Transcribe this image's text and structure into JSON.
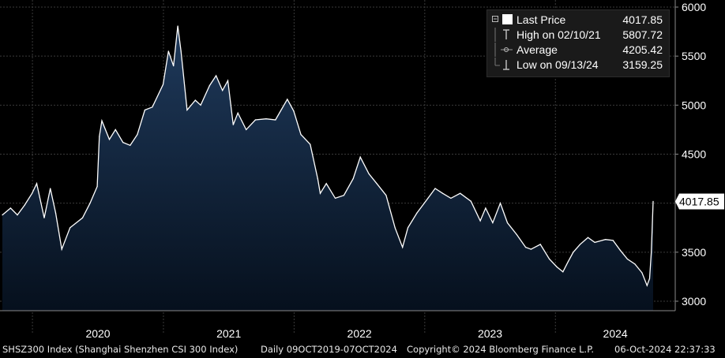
{
  "chart_data": {
    "type": "area",
    "title": "",
    "xlabel": "",
    "ylabel": "",
    "ylim": [
      2900,
      6000
    ],
    "y_ticks": [
      3000,
      3500,
      4000,
      4500,
      5000,
      5500,
      6000
    ],
    "x_year_labels": [
      "2020",
      "2021",
      "2022",
      "2023",
      "2024"
    ],
    "grid": true,
    "legend_placement": "top-right",
    "series": [
      {
        "name": "Last Price",
        "x": [
          "2019-10-09",
          "2019-11-01",
          "2019-11-20",
          "2019-12-10",
          "2019-12-31",
          "2020-01-13",
          "2020-02-03",
          "2020-02-20",
          "2020-03-06",
          "2020-03-23",
          "2020-04-15",
          "2020-05-20",
          "2020-06-10",
          "2020-06-30",
          "2020-07-06",
          "2020-07-13",
          "2020-08-03",
          "2020-08-20",
          "2020-09-10",
          "2020-09-30",
          "2020-10-20",
          "2020-11-10",
          "2020-12-01",
          "2020-12-31",
          "2021-01-15",
          "2021-01-29",
          "2021-02-10",
          "2021-02-19",
          "2021-03-08",
          "2021-03-31",
          "2021-04-15",
          "2021-05-10",
          "2021-05-28",
          "2021-06-15",
          "2021-06-30",
          "2021-07-15",
          "2021-07-28",
          "2021-08-20",
          "2021-09-15",
          "2021-10-15",
          "2021-11-10",
          "2021-12-13",
          "2021-12-31",
          "2022-01-20",
          "2022-02-15",
          "2022-03-08",
          "2022-03-15",
          "2022-04-01",
          "2022-04-26",
          "2022-05-20",
          "2022-06-15",
          "2022-07-05",
          "2022-07-29",
          "2022-08-20",
          "2022-09-15",
          "2022-10-10",
          "2022-10-31",
          "2022-11-15",
          "2022-12-10",
          "2023-01-10",
          "2023-01-30",
          "2023-02-20",
          "2023-03-15",
          "2023-04-10",
          "2023-05-10",
          "2023-06-05",
          "2023-06-20",
          "2023-07-10",
          "2023-07-31",
          "2023-08-20",
          "2023-09-15",
          "2023-10-10",
          "2023-10-25",
          "2023-11-20",
          "2023-12-15",
          "2024-01-05",
          "2024-01-22",
          "2024-02-05",
          "2024-02-20",
          "2024-03-10",
          "2024-04-01",
          "2024-04-20",
          "2024-05-20",
          "2024-06-10",
          "2024-06-30",
          "2024-07-20",
          "2024-08-10",
          "2024-08-30",
          "2024-09-13",
          "2024-09-20",
          "2024-09-25",
          "2024-09-27",
          "2024-09-30"
        ],
        "values": [
          3880,
          3950,
          3880,
          3980,
          4100,
          4200,
          3850,
          4150,
          3900,
          3530,
          3750,
          3850,
          4000,
          4170,
          4680,
          4840,
          4650,
          4750,
          4620,
          4590,
          4700,
          4950,
          4980,
          5210,
          5550,
          5400,
          5807,
          5550,
          4950,
          5050,
          5000,
          5200,
          5300,
          5150,
          5250,
          4800,
          4920,
          4750,
          4850,
          4860,
          4850,
          5060,
          4940,
          4700,
          4600,
          4250,
          4100,
          4200,
          4050,
          4080,
          4250,
          4470,
          4300,
          4200,
          4080,
          3750,
          3550,
          3750,
          3900,
          4050,
          4150,
          4100,
          4050,
          4100,
          4020,
          3820,
          3950,
          3800,
          4000,
          3800,
          3680,
          3550,
          3530,
          3580,
          3430,
          3350,
          3300,
          3400,
          3500,
          3580,
          3650,
          3600,
          3630,
          3620,
          3520,
          3430,
          3380,
          3290,
          3160,
          3230,
          3500,
          3700,
          4017.85
        ]
      }
    ],
    "annotations": [
      {
        "label": "4017.85",
        "y": 4017.85
      }
    ]
  },
  "legend": {
    "last_price": {
      "label": "Last Price",
      "value": "4017.85"
    },
    "high": {
      "label": "High on 02/10/21",
      "value": "5807.72"
    },
    "average": {
      "label": "Average",
      "value": "4205.42"
    },
    "low": {
      "label": "Low on 09/13/24",
      "value": "3159.25"
    }
  },
  "footer": {
    "index_name": "SHSZ300 Index (Shanghai Shenzhen CSI 300 Index)",
    "range": "Daily 09OCT2019-07OCT2024",
    "copyright": "Copyright© 2024 Bloomberg Finance L.P.",
    "timestamp": "06-Oct-2024 22:37:33"
  },
  "colors": {
    "background": "#000000",
    "area_fill_top": "#1f3a5c",
    "area_fill_bottom": "#06101d",
    "line": "#ffffff",
    "grid": "#3a3a3a",
    "last_price_tag_bg": "#ffffff",
    "last_price_tag_text": "#000000"
  }
}
